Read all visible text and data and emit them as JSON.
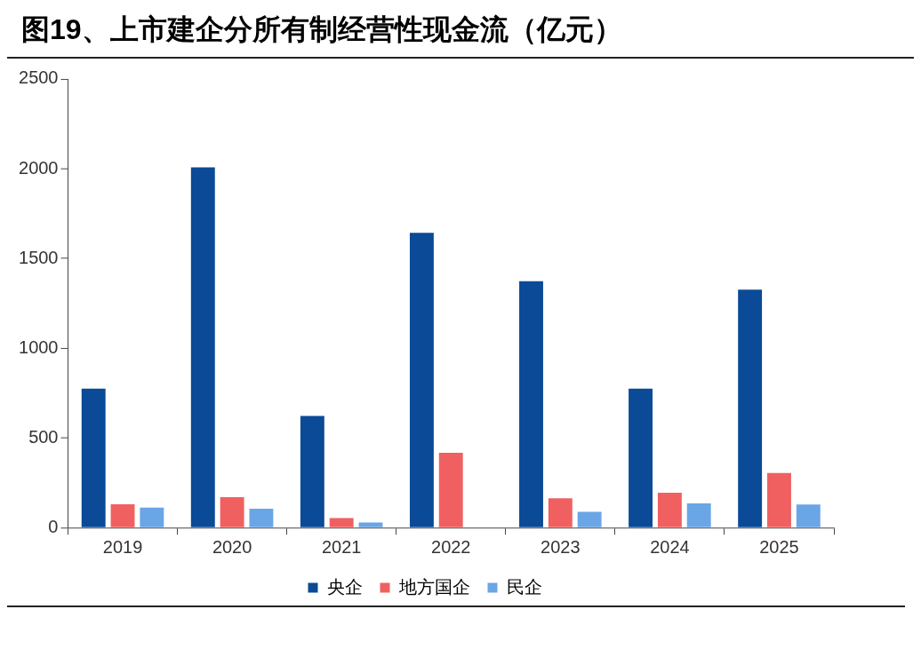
{
  "chart_data": {
    "type": "bar",
    "title": "图19、上市建企分所有制经营性现金流（亿元）",
    "categories": [
      "2019",
      "2020",
      "2021",
      "2022",
      "2023",
      "2024",
      "2025"
    ],
    "series": [
      {
        "name": "央企",
        "color": "#0a4a96",
        "values": [
          775,
          2007,
          622,
          1643,
          1373,
          775,
          1326
        ]
      },
      {
        "name": "地方国企",
        "color": "#f06060",
        "values": [
          130,
          170,
          53,
          417,
          164,
          194,
          305
        ]
      },
      {
        "name": "民企",
        "color": "#6aa5e6",
        "values": [
          112,
          105,
          29,
          null,
          88,
          135,
          129
        ]
      }
    ],
    "ylim": [
      0,
      2500
    ],
    "yticks": [
      0,
      500,
      1000,
      1500,
      2000,
      2500
    ],
    "grid": false,
    "legend": "bottom"
  }
}
